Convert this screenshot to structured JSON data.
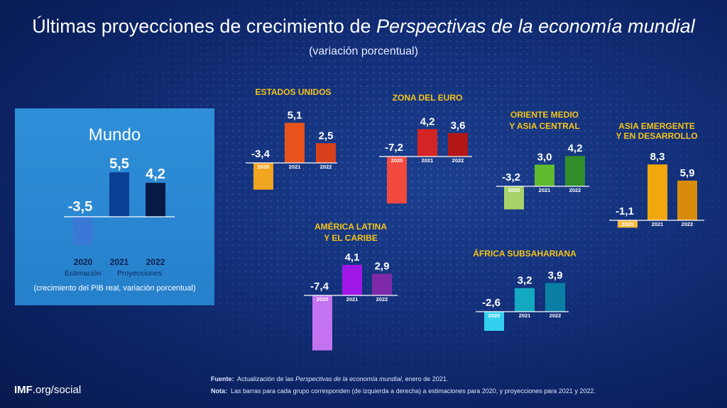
{
  "title_plain": "Últimas proyecciones de crecimiento de ",
  "title_italic": "Perspectivas de la economía mundial",
  "subtitle": "(variación porcentual)",
  "chart_data": [
    {
      "type": "bar",
      "group": "Mundo",
      "categories": [
        "2020",
        "2021",
        "2022"
      ],
      "values": [
        -3.5,
        5.5,
        4.2
      ],
      "value_labels": [
        "-3,5",
        "5,5",
        "4,2"
      ],
      "colors": [
        "#3a78d6",
        "#0a3f93",
        "#071a45"
      ],
      "category_captions": [
        "Estimación",
        "Proyecciones"
      ],
      "note": "(crecimiento del PIB real, variación porcentual)"
    },
    {
      "type": "bar",
      "group": "ESTADOS UNIDOS",
      "categories": [
        "2020",
        "2021",
        "2022"
      ],
      "values": [
        -3.4,
        5.1,
        2.5
      ],
      "value_labels": [
        "-3,4",
        "5,1",
        "2,5"
      ],
      "colors": [
        "#f2a521",
        "#e8531b",
        "#d8401c"
      ]
    },
    {
      "type": "bar",
      "group": "ZONA DEL EURO",
      "categories": [
        "2020",
        "2021",
        "2022"
      ],
      "values": [
        -7.2,
        4.2,
        3.6
      ],
      "value_labels": [
        "-7,2",
        "4,2",
        "3,6"
      ],
      "colors": [
        "#f2493e",
        "#d52424",
        "#b31616"
      ]
    },
    {
      "type": "bar",
      "group": "ORIENTE MEDIO\nY ASIA CENTRAL",
      "categories": [
        "2020",
        "2021",
        "2022"
      ],
      "values": [
        -3.2,
        3.0,
        4.2
      ],
      "value_labels": [
        "-3,2",
        "3,0",
        "4,2"
      ],
      "colors": [
        "#a8d36a",
        "#5fba2f",
        "#2f8d2a"
      ]
    },
    {
      "type": "bar",
      "group": "ASIA EMERGENTE\nY EN DESARROLLO",
      "categories": [
        "2020",
        "2021",
        "2022"
      ],
      "values": [
        -1.1,
        8.3,
        5.9
      ],
      "value_labels": [
        "-1,1",
        "8,3",
        "5,9"
      ],
      "colors": [
        "#f5b93d",
        "#f1a70e",
        "#d98b0c"
      ]
    },
    {
      "type": "bar",
      "group": "AMÉRICA LATINA\nY EL CARIBE",
      "categories": [
        "2020",
        "2021",
        "2022"
      ],
      "values": [
        -7.4,
        4.1,
        2.9
      ],
      "value_labels": [
        "-7,4",
        "4,1",
        "2,9"
      ],
      "colors": [
        "#c373f0",
        "#a018e8",
        "#7e2aa8"
      ]
    },
    {
      "type": "bar",
      "group": "ÁFRICA SUBSAHARIANA",
      "categories": [
        "2020",
        "2021",
        "2022"
      ],
      "values": [
        -2.6,
        3.2,
        3.9
      ],
      "value_labels": [
        "-2,6",
        "3,2",
        "3,9"
      ],
      "colors": [
        "#33d0f0",
        "#13a9c0",
        "#0a7fa3"
      ]
    }
  ],
  "footer": {
    "source_label": "Fuente:",
    "source_text_1": "Actualización de las ",
    "source_text_italic": "Perspectivas de la economía mundial",
    "source_text_2": ", enero de 2021.",
    "note_label": "Nota:",
    "note_text": "Las barras para cada grupo corresponden (de izquierda a derecha) a estimaciones para 2020, y proyecciones para 2021 y 2022."
  },
  "brand": {
    "bold": "IMF",
    "rest": ".org/social"
  },
  "colors": {
    "title_yellow": "#f5c518",
    "mundo_panel": "#2a86d0"
  }
}
